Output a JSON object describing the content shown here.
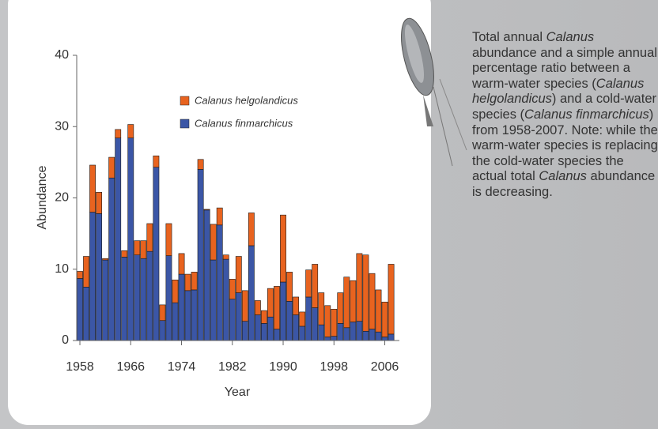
{
  "chart_data": {
    "type": "stacked-bar",
    "x": [
      1958,
      1959,
      1960,
      1961,
      1962,
      1963,
      1964,
      1965,
      1966,
      1967,
      1968,
      1969,
      1970,
      1971,
      1972,
      1973,
      1974,
      1975,
      1976,
      1977,
      1978,
      1979,
      1980,
      1981,
      1982,
      1983,
      1984,
      1985,
      1986,
      1987,
      1988,
      1989,
      1990,
      1991,
      1992,
      1993,
      1994,
      1995,
      1996,
      1997,
      1998,
      1999,
      2000,
      2001,
      2002,
      2003,
      2004,
      2005,
      2006,
      2007
    ],
    "series": [
      {
        "name": "Calanus finmarchicus",
        "color": "#3b56a6",
        "values": [
          8.7,
          7.5,
          18,
          17.8,
          11.3,
          22.8,
          28.4,
          11.7,
          28.4,
          12,
          11.5,
          12.5,
          24.3,
          2.8,
          11.9,
          5.3,
          9.3,
          7,
          7.1,
          24,
          18.3,
          11.3,
          16.2,
          11.4,
          5.8,
          6.7,
          2.7,
          13.3,
          3.6,
          2.4,
          3.3,
          1.6,
          8.2,
          5.5,
          3.6,
          2,
          6.1,
          4.6,
          2.2,
          0.5,
          0.6,
          2.4,
          1.8,
          2.6,
          2.7,
          1.3,
          1.6,
          1.2,
          0.5,
          0.9
        ]
      },
      {
        "name": "Calanus helgolandicus",
        "color": "#e8631f",
        "values": [
          1,
          4.3,
          6.6,
          3,
          0.2,
          2.9,
          1.2,
          0.9,
          1.9,
          2,
          2.5,
          3.9,
          1.6,
          2.2,
          4.5,
          3.2,
          2.9,
          2.3,
          2.5,
          1.4,
          0.1,
          5,
          2.4,
          0.6,
          2.8,
          5.1,
          4.3,
          4.6,
          2,
          1.8,
          4,
          6,
          9.4,
          4.1,
          2.5,
          2,
          3.8,
          6.1,
          4.5,
          4.4,
          3.8,
          4.3,
          7.1,
          5.8,
          9.5,
          10.7,
          7.8,
          5.9,
          4.9,
          9.8
        ]
      }
    ],
    "xlabel": "Year",
    "ylabel": "Abundance",
    "xlim": [
      1957.5,
      2008.3
    ],
    "xticks": [
      1958,
      1966,
      1974,
      1982,
      1990,
      1998,
      2006
    ],
    "ylim": [
      0,
      40
    ],
    "yticks": [
      0,
      10,
      20,
      30,
      40
    ],
    "grid": false
  },
  "caption": [
    {
      "text": "Total annual ",
      "italic": false
    },
    {
      "text": "Calanus",
      "italic": true
    },
    {
      "text": " abundance and a simple annual percentage ratio between a warm-water species (",
      "italic": false
    },
    {
      "text": "Calanus helgolandicus",
      "italic": true
    },
    {
      "text": ") and a cold-water species (",
      "italic": false
    },
    {
      "text": "Calanus finmarchicus",
      "italic": true
    },
    {
      "text": ") from 1958-2007. Note: while the warm-water species is replacing the cold-water species the actual total ",
      "italic": false
    },
    {
      "text": "Calanus",
      "italic": true
    },
    {
      "text": " abundance is decreasing.",
      "italic": false
    }
  ]
}
